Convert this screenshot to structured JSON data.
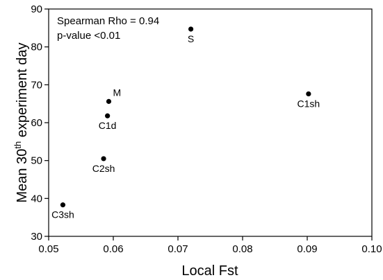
{
  "chart_data": {
    "type": "scatter",
    "xlabel": "Local Fst",
    "ylabel": {
      "before": "Mean 30",
      "superscript": "th",
      "after": " experiment day"
    },
    "xlim": [
      0.05,
      0.1
    ],
    "ylim": [
      30,
      90
    ],
    "x_ticks": [
      {
        "value": 0.05,
        "label": "0.05"
      },
      {
        "value": 0.06,
        "label": "0.06"
      },
      {
        "value": 0.07,
        "label": "0.07"
      },
      {
        "value": 0.08,
        "label": "0.08"
      },
      {
        "value": 0.09,
        "label": "0.09"
      },
      {
        "value": 0.1,
        "label": "0.10"
      }
    ],
    "y_ticks": [
      {
        "value": 30,
        "label": "30"
      },
      {
        "value": 40,
        "label": "40"
      },
      {
        "value": 50,
        "label": "50"
      },
      {
        "value": 60,
        "label": "60"
      },
      {
        "value": 70,
        "label": "70"
      },
      {
        "value": 80,
        "label": "80"
      },
      {
        "value": 90,
        "label": "90"
      }
    ],
    "grid": false,
    "annotations": [
      "Spearman Rho = 0.94",
      "p-value <0.01"
    ],
    "points": [
      {
        "label": "S",
        "x": 0.072,
        "y": 84.7,
        "label_pos": "below"
      },
      {
        "label": "C1sh",
        "x": 0.0902,
        "y": 67.6,
        "label_pos": "below"
      },
      {
        "label": "M",
        "x": 0.0593,
        "y": 65.6,
        "label_pos": "above-right"
      },
      {
        "label": "C1d",
        "x": 0.0591,
        "y": 61.8,
        "label_pos": "below"
      },
      {
        "label": "C2sh",
        "x": 0.0585,
        "y": 50.5,
        "label_pos": "below"
      },
      {
        "label": "C3sh",
        "x": 0.0522,
        "y": 38.3,
        "label_pos": "below"
      }
    ]
  }
}
